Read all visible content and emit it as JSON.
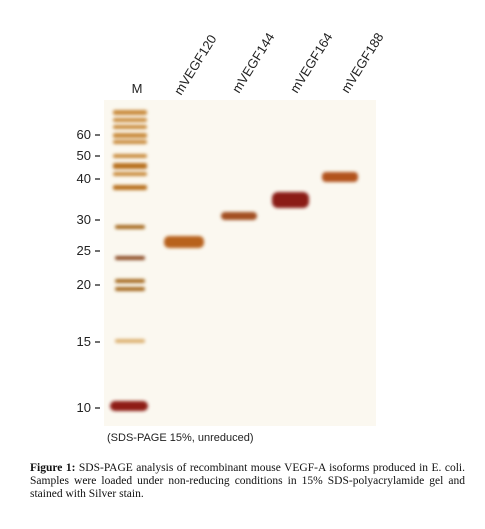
{
  "figure": {
    "lanes": [
      "M",
      "mVEGF120",
      "mVEGF144",
      "mVEGF164",
      "mVEGF188"
    ],
    "markers": [
      "60",
      "50",
      "40",
      "30",
      "25",
      "20",
      "15",
      "10"
    ],
    "note": "(SDS-PAGE 15%, unreduced)"
  },
  "caption": {
    "label": "Figure 1:",
    "text": "SDS-PAGE analysis of recombinant mouse VEGF-A isoforms produced in E. coli. Samples were loaded under non-reducing conditions in 15% SDS-polyacrylamide gel and stained with Silver stain."
  }
}
